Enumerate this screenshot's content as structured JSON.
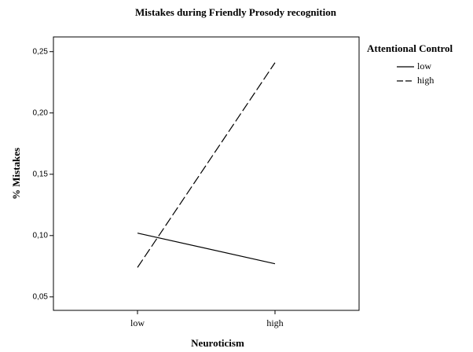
{
  "chart_data": {
    "type": "line",
    "title": "Mistakes during Friendly Prosody recognition",
    "x_label": "Neuroticism",
    "y_label": "% Mistakes",
    "legend_title": "Attentional Control",
    "legend_position": "right",
    "categories": [
      "low",
      "high"
    ],
    "series": [
      {
        "name": "low",
        "color": "#000000",
        "style": "solid",
        "values": [
          0.102,
          0.077
        ]
      },
      {
        "name": "high",
        "color": "#000000",
        "style": "dashed",
        "values": [
          0.074,
          0.241
        ]
      }
    ],
    "ylim": [
      0.039,
      0.262
    ],
    "yticks": [
      {
        "value": 0.05,
        "label": "0,05"
      },
      {
        "value": 0.1,
        "label": "0,10"
      },
      {
        "value": 0.15,
        "label": "0,15"
      },
      {
        "value": 0.2,
        "label": "0,20"
      },
      {
        "value": 0.25,
        "label": "0,25"
      }
    ],
    "grid": false
  }
}
